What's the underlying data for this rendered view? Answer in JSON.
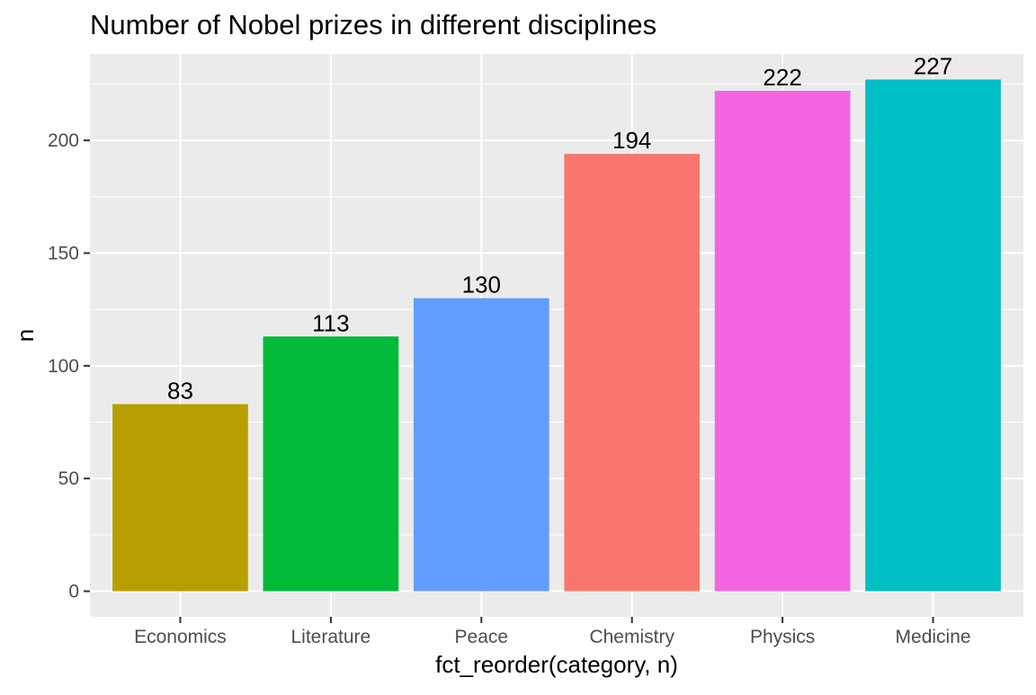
{
  "chart_data": {
    "type": "bar",
    "title": "Number of Nobel prizes in different disciplines",
    "xlabel": "fct_reorder(category, n)",
    "ylabel": "n",
    "categories": [
      "Economics",
      "Literature",
      "Peace",
      "Chemistry",
      "Physics",
      "Medicine"
    ],
    "values": [
      83,
      113,
      130,
      194,
      222,
      227
    ],
    "data_labels": [
      "83",
      "113",
      "130",
      "194",
      "222",
      "227"
    ],
    "colors": [
      "#B79F00",
      "#00BA38",
      "#619CFF",
      "#F8766D",
      "#F564E3",
      "#00BFC4"
    ],
    "ylim": [
      -11.35,
      238.35
    ],
    "yticks": [
      0,
      50,
      100,
      150,
      200
    ],
    "ytick_labels": [
      "0",
      "50",
      "100",
      "150",
      "200"
    ],
    "grid": true,
    "legend": "none",
    "panel_background": "#EBEBEB",
    "gridline_color": "#FFFFFF"
  }
}
